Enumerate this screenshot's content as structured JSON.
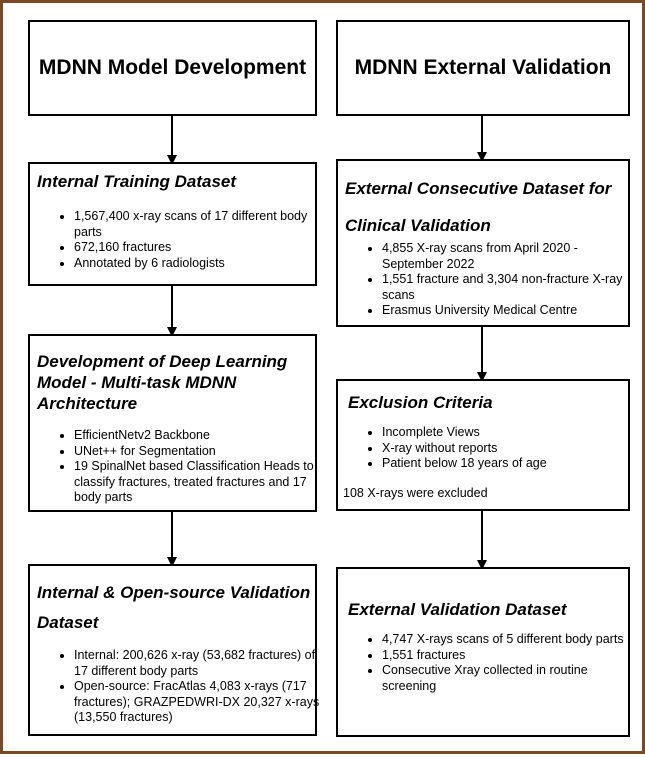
{
  "left_column": {
    "header": "MDNN Model Development",
    "boxes": [
      {
        "title": "Internal Training Dataset",
        "items": [
          "1,567,400 x-ray scans of 17 different body parts",
          "672,160 fractures",
          "Annotated by 6 radiologists"
        ]
      },
      {
        "title": "Development of Deep Learning Model - Multi-task MDNN Architecture",
        "items": [
          "EfficientNetv2 Backbone",
          "UNet++ for Segmentation",
          "19 SpinalNet based Classification Heads to classify fractures, treated fractures and 17 body parts"
        ]
      },
      {
        "title": "Internal & Open-source Validation Dataset",
        "items": [
          "Internal: 200,626 x-ray (53,682 fractures) of 17 different body parts",
          "Open-source: FracAtlas 4,083 x-rays (717 fractures); GRAZPEDWRI-DX 20,327 x-rays (13,550 fractures)"
        ]
      }
    ]
  },
  "right_column": {
    "header": "MDNN External Validation",
    "boxes": [
      {
        "title": "External Consecutive Dataset for Clinical Validation",
        "items": [
          "4,855 X-ray scans from April 2020 - September 2022",
          "1,551 fracture and 3,304 non-fracture X-ray scans",
          "Erasmus University Medical Centre"
        ]
      },
      {
        "title": "Exclusion Criteria",
        "items": [
          "Incomplete Views",
          "X-ray without reports",
          "Patient below 18 years of age"
        ],
        "note": "108 X-rays were excluded"
      },
      {
        "title": "External Validation Dataset",
        "items": [
          "4,747 X-rays scans of 5 different body parts",
          "1,551 fractures",
          "Consecutive Xray collected in routine screening"
        ]
      }
    ]
  }
}
